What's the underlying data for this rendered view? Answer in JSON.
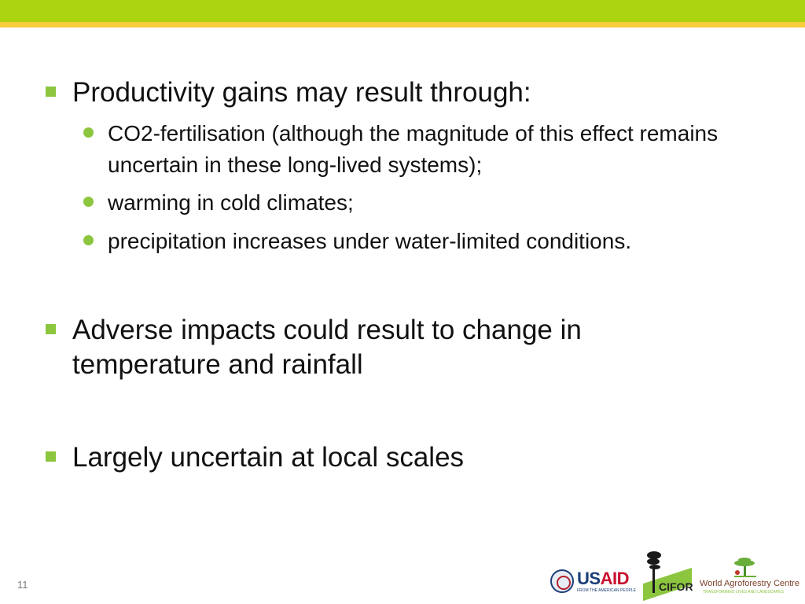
{
  "header": {
    "bar_color": "#acd411",
    "stripe_color": "#f8cd3b"
  },
  "bullets": [
    {
      "text": "Productivity gains may result through:",
      "marker": "green-square-bullet",
      "sub": [
        {
          "text": "CO2-fertilisation (although the magnitude of this effect remains uncertain in these long-lived systems);",
          "marker": "green-dot-bullet"
        },
        {
          "text": "warming in cold climates;",
          "marker": "green-dot-bullet"
        },
        {
          "text": "precipitation increases under water-limited conditions.",
          "marker": "green-dot-bullet"
        }
      ]
    },
    {
      "text": "Adverse impacts could result to change in temperature and rainfall",
      "marker": "green-square-bullet"
    },
    {
      "text": "Largely uncertain at local scales",
      "marker": "green-square-bullet"
    }
  ],
  "bullet_color": "#8cc63f",
  "page_number": "11",
  "footer_logos": {
    "usaid": {
      "us": "US",
      "aid": "AID",
      "tagline": "FROM THE AMERICAN PEOPLE"
    },
    "cifor": {
      "name": "CIFOR"
    },
    "world_agroforestry": {
      "name": "World Agroforestry Centre",
      "tagline": "TRANSFORMING LIVES AND LANDSCAPES"
    }
  }
}
